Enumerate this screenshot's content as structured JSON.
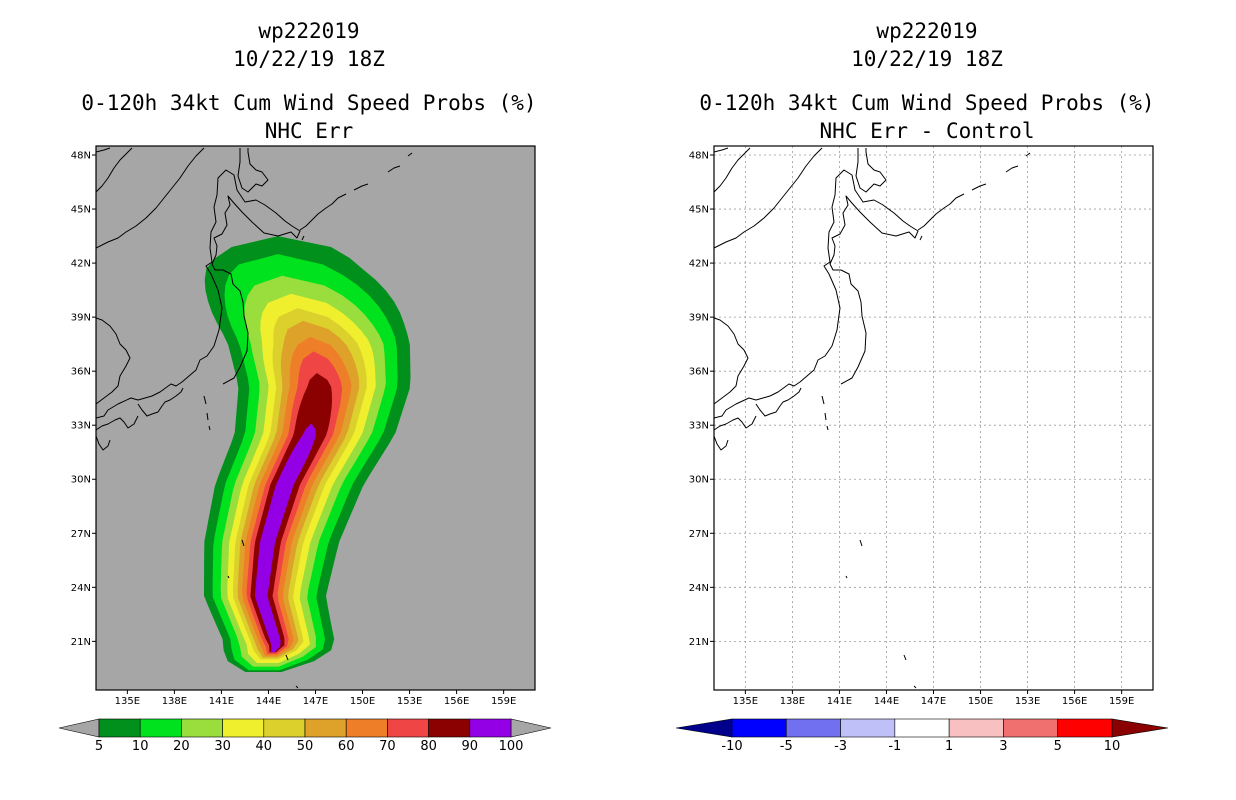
{
  "panels": [
    {
      "id": "left",
      "title_lines": [
        "wp222019",
        "10/22/19 18Z",
        "0-120h 34kt Cum Wind Speed Probs (%)",
        "NHC Err"
      ],
      "background": "#a6a6a6",
      "grid": false
    },
    {
      "id": "right",
      "title_lines": [
        "wp222019",
        "10/22/19 18Z",
        "0-120h 34kt Cum Wind Speed Probs (%)",
        "NHC Err - Control"
      ],
      "background": "#ffffff",
      "grid": true
    }
  ],
  "chart_data": [
    {
      "type": "heatmap",
      "title": "0-120h 34kt Cum Wind Speed Probs (%) — NHC Err",
      "storm": "wp222019",
      "valid": "10/22/19 18Z",
      "units": "%",
      "xlim": [
        133,
        161
      ],
      "ylim": [
        18.3,
        48.5
      ],
      "x_ticks": [
        135,
        138,
        141,
        144,
        147,
        150,
        153,
        156,
        159
      ],
      "x_tick_labels": [
        "135E",
        "138E",
        "141E",
        "144E",
        "147E",
        "150E",
        "153E",
        "156E",
        "159E"
      ],
      "y_ticks": [
        21,
        24,
        27,
        30,
        33,
        36,
        39,
        42,
        45,
        48
      ],
      "y_tick_labels": [
        "21N",
        "24N",
        "27N",
        "30N",
        "33N",
        "36N",
        "39N",
        "42N",
        "45N",
        "48N"
      ],
      "levels": [
        5,
        10,
        20,
        30,
        40,
        50,
        60,
        70,
        80,
        90,
        100
      ],
      "level_labels": [
        "5",
        "10",
        "20",
        "30",
        "40",
        "50",
        "60",
        "70",
        "80",
        "90",
        "100"
      ],
      "colors": [
        "#00901b",
        "#00e21e",
        "#99de3c",
        "#efef2e",
        "#dcd12c",
        "#dea22b",
        "#ee7f28",
        "#ef4545",
        "#8b0000",
        "#9400e6"
      ],
      "track": [
        [
          143.6,
          19.3
        ],
        [
          144.5,
          20.8
        ],
        [
          143.5,
          23.5
        ],
        [
          143.9,
          26.5
        ],
        [
          145.0,
          29.7
        ],
        [
          146.6,
          32.5
        ],
        [
          147.2,
          35.2
        ],
        [
          146.8,
          37.6
        ],
        [
          145.6,
          40.0
        ],
        [
          144.6,
          41.8
        ]
      ],
      "band_widths_deg": [
        5.6,
        4.75,
        3.95,
        3.3,
        2.75,
        2.3,
        1.85,
        1.4,
        1.0,
        0.55
      ],
      "top_limit_lat": [
        43.5,
        42.5,
        41.3,
        40.3,
        39.5,
        38.8,
        37.9,
        37.1,
        35.9,
        33.1
      ],
      "bottom_limit_lat": [
        19.3,
        19.4,
        19.6,
        19.8,
        20.0,
        20.1,
        20.2,
        20.3,
        20.4,
        20.4
      ]
    },
    {
      "type": "heatmap",
      "title": "0-120h 34kt Cum Wind Speed Probs (%) — NHC Err - Control",
      "storm": "wp222019",
      "valid": "10/22/19 18Z",
      "units": "%",
      "xlim": [
        133,
        161
      ],
      "ylim": [
        18.3,
        48.5
      ],
      "x_tick_labels": [
        "135E",
        "138E",
        "141E",
        "144E",
        "147E",
        "150E",
        "153E",
        "156E",
        "159E"
      ],
      "y_tick_labels": [
        "21N",
        "24N",
        "27N",
        "30N",
        "33N",
        "36N",
        "39N",
        "42N",
        "45N",
        "48N"
      ],
      "levels": [
        -10,
        -5,
        -3,
        -1,
        1,
        3,
        5,
        10
      ],
      "level_labels": [
        "-10",
        "-5",
        "-3",
        "-1",
        "1",
        "3",
        "5",
        "10"
      ],
      "colors": [
        "#00008b",
        "#0000ff",
        "#7070f0",
        "#c0c0f8",
        "#ffffff",
        "#f8c0c0",
        "#f07070",
        "#ff0000",
        "#8b0000"
      ],
      "values_shown": "none (difference field entirely within -1 to 1)"
    }
  ]
}
